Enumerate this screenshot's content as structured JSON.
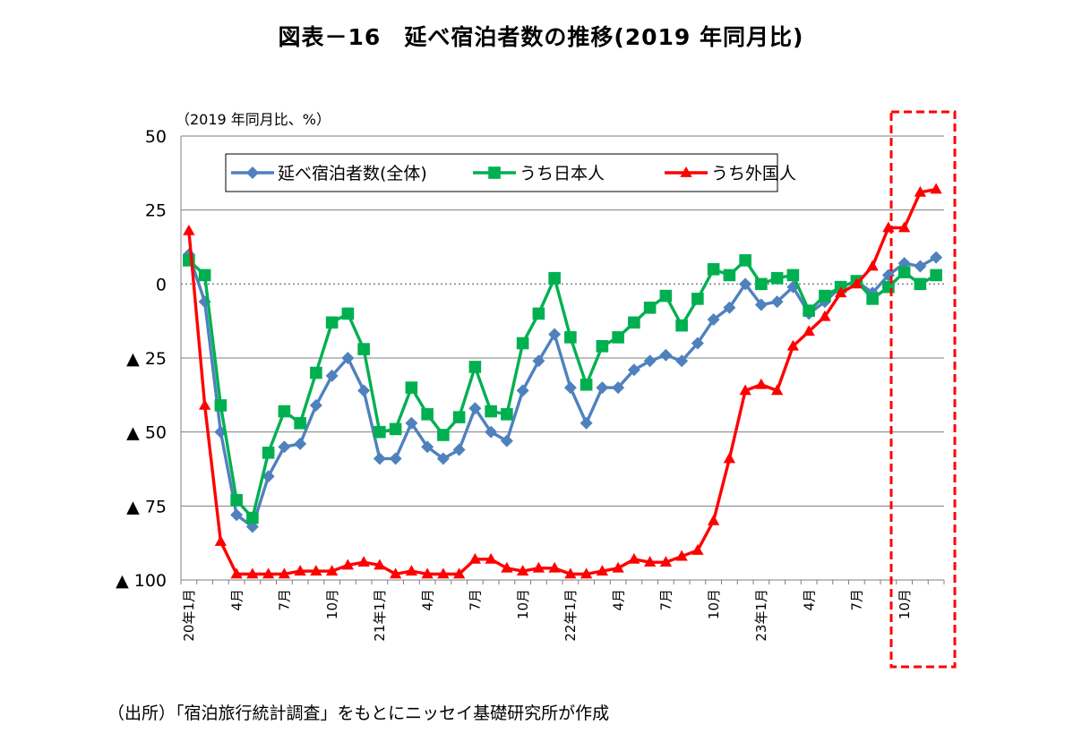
{
  "title": "図表－16　延べ宿泊者数の推移(2019 年同月比)",
  "source": "（出所）「宿泊旅行統計調査」をもとにニッセイ基礎研究所が作成",
  "chart_data": {
    "type": "line",
    "unit_label": "（2019 年同月比、%）",
    "ylim": [
      -100,
      50
    ],
    "y_ticks": [
      50,
      25,
      0,
      -25,
      -50,
      -75,
      -100
    ],
    "y_tick_labels": [
      "50",
      "25",
      "0",
      "▲ 25",
      "▲ 50",
      "▲ 75",
      "▲ 100"
    ],
    "x": [
      "2020-01",
      "2020-02",
      "2020-03",
      "2020-04",
      "2020-05",
      "2020-06",
      "2020-07",
      "2020-08",
      "2020-09",
      "2020-10",
      "2020-11",
      "2020-12",
      "2021-01",
      "2021-02",
      "2021-03",
      "2021-04",
      "2021-05",
      "2021-06",
      "2021-07",
      "2021-08",
      "2021-09",
      "2021-10",
      "2021-11",
      "2021-12",
      "2022-01",
      "2022-02",
      "2022-03",
      "2022-04",
      "2022-05",
      "2022-06",
      "2022-07",
      "2022-08",
      "2022-09",
      "2022-10",
      "2022-11",
      "2022-12",
      "2023-01",
      "2023-02",
      "2023-03",
      "2023-04",
      "2023-05",
      "2023-06",
      "2023-07",
      "2023-08",
      "2023-09",
      "2023-10",
      "2023-11",
      "2023-12"
    ],
    "x_tick_labels": [
      {
        "i": 0,
        "label": "20年1月"
      },
      {
        "i": 3,
        "label": "4月"
      },
      {
        "i": 6,
        "label": "7月"
      },
      {
        "i": 9,
        "label": "10月"
      },
      {
        "i": 12,
        "label": "21年1月"
      },
      {
        "i": 15,
        "label": "4月"
      },
      {
        "i": 18,
        "label": "7月"
      },
      {
        "i": 21,
        "label": "10月"
      },
      {
        "i": 24,
        "label": "22年1月"
      },
      {
        "i": 27,
        "label": "4月"
      },
      {
        "i": 30,
        "label": "7月"
      },
      {
        "i": 33,
        "label": "10月"
      },
      {
        "i": 36,
        "label": "23年1月"
      },
      {
        "i": 39,
        "label": "4月"
      },
      {
        "i": 42,
        "label": "7月"
      },
      {
        "i": 45,
        "label": "10月"
      }
    ],
    "series": [
      {
        "name": "延べ宿泊者数(全体)",
        "color": "#4f81bd",
        "marker": "diamond",
        "values": [
          10,
          -6,
          -50,
          -78,
          -82,
          -65,
          -55,
          -54,
          -41,
          -31,
          -25,
          -36,
          -59,
          -59,
          -47,
          -55,
          -59,
          -56,
          -42,
          -50,
          -53,
          -36,
          -26,
          -17,
          -35,
          -47,
          -35,
          -35,
          -29,
          -26,
          -24,
          -26,
          -20,
          -12,
          -8,
          0,
          -7,
          -6,
          -1,
          -10,
          -6,
          -1,
          1,
          -3,
          3,
          7,
          6,
          9
        ]
      },
      {
        "name": "うち日本人",
        "color": "#00b050",
        "marker": "square",
        "values": [
          8,
          3,
          -41,
          -73,
          -79,
          -57,
          -43,
          -47,
          -30,
          -13,
          -10,
          -22,
          -50,
          -49,
          -35,
          -44,
          -51,
          -45,
          -28,
          -43,
          -44,
          -20,
          -10,
          2,
          -18,
          -34,
          -21,
          -18,
          -13,
          -8,
          -4,
          -14,
          -5,
          5,
          3,
          8,
          0,
          2,
          3,
          -9,
          -4,
          -1,
          1,
          -5,
          -1,
          4,
          0,
          3
        ]
      },
      {
        "name": "うち外国人",
        "color": "#ff0000",
        "marker": "triangle",
        "values": [
          18,
          -41,
          -87,
          -98,
          -98,
          -98,
          -98,
          -97,
          -97,
          -97,
          -95,
          -94,
          -95,
          -98,
          -97,
          -98,
          -98,
          -98,
          -93,
          -93,
          -96,
          -97,
          -96,
          -96,
          -98,
          -98,
          -97,
          -96,
          -93,
          -94,
          -94,
          -92,
          -90,
          -80,
          -59,
          -36,
          -34,
          -36,
          -21,
          -16,
          -11,
          -3,
          0,
          6,
          19,
          19,
          31,
          32
        ]
      }
    ],
    "legend_position": "top-left",
    "grid": true,
    "highlight": "dashed red box around 2023-10 to 2023-12"
  }
}
